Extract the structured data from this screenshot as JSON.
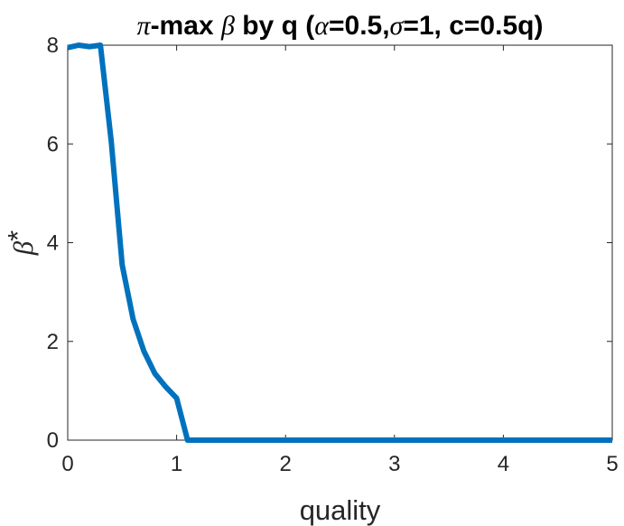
{
  "chart_data": {
    "type": "line",
    "title": {
      "parts": [
        {
          "text": "π",
          "symbol": true
        },
        {
          "text": "-max ",
          "symbol": false
        },
        {
          "text": "β",
          "symbol": true
        },
        {
          "text": " by q (",
          "symbol": false
        },
        {
          "text": "α",
          "symbol": true
        },
        {
          "text": "=0.5,",
          "symbol": false
        },
        {
          "text": "σ",
          "symbol": true
        },
        {
          "text": "=1, c=0.5q)",
          "symbol": false
        }
      ]
    },
    "xlabel": "quality",
    "ylabel": {
      "symbol": "β",
      "suffix": "*"
    },
    "xlim": [
      0,
      5
    ],
    "ylim": [
      0,
      8
    ],
    "xticks": [
      0,
      1,
      2,
      3,
      4,
      5
    ],
    "yticks": [
      0,
      2,
      4,
      6,
      8
    ],
    "grid": false,
    "color": "#0072BD",
    "series": [
      {
        "x": [
          0,
          0.1,
          0.2,
          0.3,
          0.4,
          0.5,
          0.6,
          0.7,
          0.8,
          0.9,
          1.0,
          1.1,
          1.2,
          1.5,
          2.0,
          2.5,
          3.0,
          3.5,
          4.0,
          4.5,
          5.0
        ],
        "y": [
          7.95,
          8.0,
          7.97,
          8.0,
          6.05,
          3.55,
          2.45,
          1.8,
          1.35,
          1.08,
          0.85,
          0,
          0,
          0,
          0,
          0,
          0,
          0,
          0,
          0,
          0
        ]
      }
    ]
  }
}
